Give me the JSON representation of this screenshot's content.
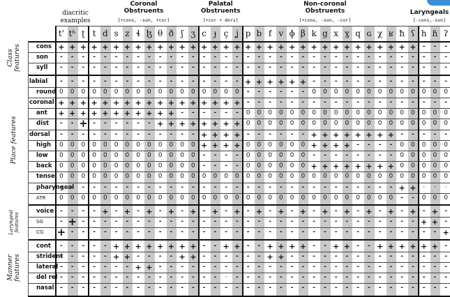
{
  "header": {
    "diacritic_examples": "diacritic examples",
    "groups": [
      {
        "id": "coronal",
        "title": "Coronal Obstruents",
        "sub": "[+cons, -son, +cor]"
      },
      {
        "id": "palatal",
        "title": "Palatal Obstruents",
        "sub": "[+cor + dors]"
      },
      {
        "id": "noncoronal",
        "title": "Non-coronal Obstruents",
        "sub": "[+cons, -son, -cor]"
      },
      {
        "id": "laryngeals",
        "title": "Laryngeals",
        "sub": "[-cons,-son]"
      }
    ]
  },
  "segments": [
    "t'",
    "tʰ",
    "ʈ",
    "t",
    "d",
    "s",
    "z",
    "ɬ",
    "ɮ",
    "θ",
    "ð",
    "ʃ",
    "ʒ",
    "c",
    "ɟ",
    "ç",
    "ʝ",
    "p",
    "b",
    "f",
    "v",
    "ɸ",
    "β",
    "k",
    "g",
    "x",
    "ɣ",
    "q",
    "ɢ",
    "χ",
    "ʁ",
    "ħ",
    "ʕ",
    "h",
    "ɦ",
    "ʔ"
  ],
  "shaded_columns": [
    1,
    4,
    6,
    8,
    10,
    12,
    14,
    16,
    18,
    20,
    22,
    24,
    26,
    28,
    30,
    32,
    34
  ],
  "feature_groups": [
    {
      "label": "Class features",
      "small": false,
      "rows": [
        0,
        1,
        2
      ]
    },
    {
      "label": "Place features",
      "small": false,
      "rows": [
        3,
        4,
        5,
        6,
        7,
        8,
        9,
        10,
        11,
        12,
        13,
        14
      ]
    },
    {
      "label": "Laryngeal features",
      "small": true,
      "rows": [
        15,
        16,
        17
      ]
    },
    {
      "label": "Manner features",
      "small": false,
      "rows": [
        18,
        19,
        20,
        21,
        22
      ]
    }
  ],
  "features": [
    {
      "name": "cons",
      "indent": true,
      "sub": false,
      "values": "+ + + + + + + + + + + + + + + + + + + + + + + + + + + + + + + + + - - -"
    },
    {
      "name": "son",
      "indent": true,
      "sub": false,
      "values": "- - - - - - - - - - - - - - - - - - - - - - - - - - - - - - - - - - - -"
    },
    {
      "name": "syll",
      "indent": true,
      "sub": false,
      "values": "- - - - - - - - - - - - - - - - - - - - - - - - - - - - - - - - - - - -"
    },
    {
      "name": "labial",
      "indent": false,
      "sub": false,
      "values": "- - - - - - - - - - - - - - - - - + + + + + + - - - - - - - - - - - - -"
    },
    {
      "name": "round",
      "indent": true,
      "sub": false,
      "values": "0 0 0 0 0 0 0 0 0 0 0 0 0 0 0 0 0 - - - - - - 0 0 0 0 0 0 0 0 0 0 0 0 0"
    },
    {
      "name": "coronal",
      "indent": false,
      "sub": false,
      "values": "+ + + + + + + + + + + + + + + + + - - - - - - - - - - - - - - - - - - -"
    },
    {
      "name": "ant",
      "indent": true,
      "sub": false,
      "values": "+ + + + + + + + + + + - - - - - - 0 0 0 0 0 0 0 0 0 0 0 0 0 0 0 0 0 0 0"
    },
    {
      "name": "dist",
      "indent": true,
      "sub": false,
      "values": "- - + - - - - - - + + + + + + + + 0 0 0 0 0 0 0 0 0 0 0 0 0 0 0 0 0 0 0"
    },
    {
      "name": "dorsal",
      "indent": false,
      "sub": false,
      "values": "- - - - - - - - - - - - - + + + + - - - - - - + + + + + + + + - - - - -"
    },
    {
      "name": "high",
      "indent": true,
      "sub": false,
      "values": "0 0 0 0 0 0 0 0 0 0 0 0 0 + + + + 0 0 0 0 0 0 + + + + - - - - 0 0 0 0 0"
    },
    {
      "name": "low",
      "indent": true,
      "sub": false,
      "values": "0 0 0 0 0 0 0 0 0 0 0 0 0 - - - - 0 0 0 0 0 0 - - - - - - - - 0 0 0 0 0"
    },
    {
      "name": "back",
      "indent": true,
      "sub": false,
      "values": "0 0 0 0 0 0 0 0 0 0 0 0 0 - - - - 0 0 0 0 0 0 + + + + + + + + 0 0 0 0 0"
    },
    {
      "name": "tense",
      "indent": true,
      "sub": false,
      "values": "0 0 0 0 0 0 0 0 0 0 0 0 0 0 0 0 0 0 0 0 0 0 0 0 0 0 0 0 0 0 0 0 0 0 0 0"
    },
    {
      "name": "pharyngeal",
      "indent": true,
      "sub": false,
      "values": "- - - - - - - - - - - - - - - - - - - - - - - - - - - - - - - + + · · ·"
    },
    {
      "name": "ATR",
      "indent": true,
      "sub": true,
      "values": "0 0 0 0 0 0 0 0 0 0 0 0 0 0 0 0 0 0 0 0 0 0 0 0 0 0 0 0 0 0 0 - - 0 0 0"
    },
    {
      "name": "voice",
      "indent": true,
      "sub": false,
      "values": "- - - - + - + - + - + - + - + - + - + - + - + - + - + - + - + - + - + -"
    },
    {
      "name": "SG",
      "indent": true,
      "sub": true,
      "values": "- + - - - - - - - - - - - - - - - - - - - - - - - - - - - - - - - + + -"
    },
    {
      "name": "CG",
      "indent": true,
      "sub": true,
      "values": "+ - - - - - - - - - - - - - - - - - - - - - - - - - - - - - - - - - - +"
    },
    {
      "name": "cont",
      "indent": true,
      "sub": false,
      "values": "- - - - - + + + + + + + + - - + + - - + + + + - - + + - - + + + + + + -"
    },
    {
      "name": "strident",
      "indent": true,
      "sub": false,
      "values": "- - - - - + + - - - - + + - - - - - - + + - - - - - - - - - - - - - - -"
    },
    {
      "name": "lateral",
      "indent": true,
      "sub": false,
      "values": "- - - - - - - + + - - - - - - - - - - - - - - - - - - - - - - - - - - -"
    },
    {
      "name": "del rel",
      "indent": true,
      "sub": false,
      "values": "- - - - - - - - - - - - - - - · - - - - - - - - - - - - - - - - - - - -"
    },
    {
      "name": "nasal",
      "indent": true,
      "sub": false,
      "values": "- - - - - - - - - - - - - - - - - - - - - - - - - - - - - - - - - - - -"
    }
  ],
  "big_marks": [
    [
      7,
      2
    ],
    [
      16,
      1
    ],
    [
      17,
      0
    ]
  ]
}
